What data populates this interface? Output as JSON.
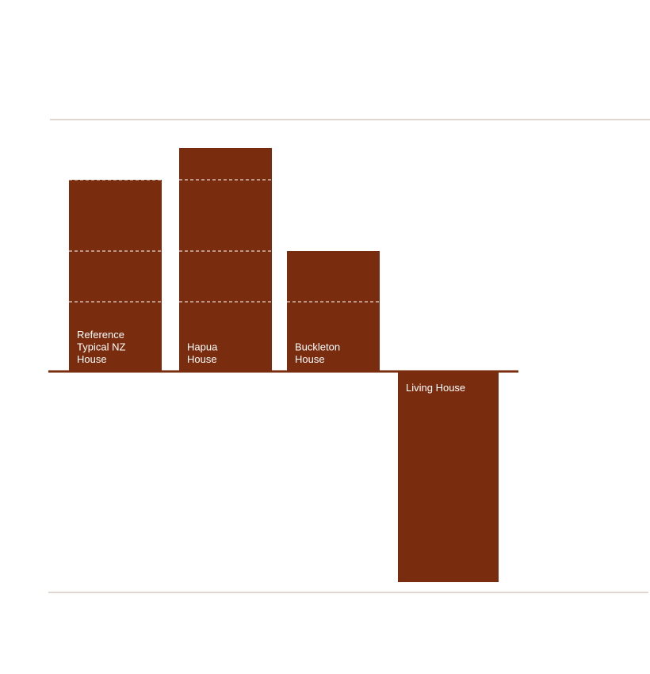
{
  "chart_data": {
    "type": "bar",
    "title": "",
    "xlabel": "",
    "ylabel": "",
    "grid": false,
    "legend": "none",
    "categories": [
      [
        "Reference",
        "Typical NZ",
        "House"
      ],
      [
        "Hapua",
        "House"
      ],
      [
        "Buckleton",
        "House"
      ],
      [
        "Living House"
      ]
    ],
    "values": [
      242,
      282,
      152,
      -266
    ],
    "segment_boundaries": [
      [
        88,
        152,
        242
      ],
      [
        88,
        152,
        242
      ],
      [
        88
      ],
      []
    ],
    "ylim": [
      -281,
      318
    ]
  },
  "colors": {
    "bar": "#7a2c0e",
    "segment_divider": "#ffffff",
    "label": "#ffffff",
    "reference_line": "#c4aca0",
    "baseline": "#7a2c0e"
  }
}
